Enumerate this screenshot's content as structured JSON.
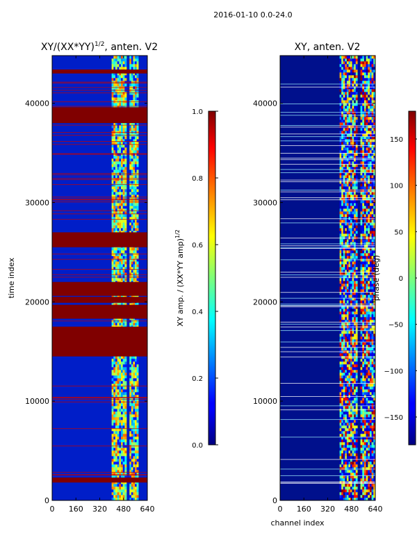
{
  "suptitle": "2016-01-10 0.0-24.0",
  "chart_data": [
    {
      "type": "heatmap",
      "title_main": "XY/(XX*YY)",
      "title_sup": "1/2",
      "title_tail": ", anten. V2",
      "xlabel": "",
      "ylabel": "time index",
      "xlim": [
        0,
        640
      ],
      "ylim": [
        0,
        44800
      ],
      "xticks": [
        0,
        160,
        320,
        480,
        640
      ],
      "yticks": [
        0,
        10000,
        20000,
        30000,
        40000
      ],
      "active_channels": [
        [
          400,
          500
        ],
        [
          520,
          580
        ]
      ],
      "saturated_bands": [
        [
          1800,
          2300
        ],
        [
          14500,
          17500
        ],
        [
          18300,
          19700
        ],
        [
          19900,
          20500
        ],
        [
          20600,
          22000
        ],
        [
          25500,
          27000
        ],
        [
          38000,
          39600
        ],
        [
          43000,
          43400
        ]
      ],
      "colorbar": {
        "label_main": "XY amp. / (XX*YY amp)",
        "label_sup": "1/2",
        "range": [
          0,
          1
        ],
        "ticks": [
          "0.0",
          "0.2",
          "0.4",
          "0.6",
          "0.8",
          "1.0"
        ],
        "tick_values": [
          0,
          0.2,
          0.4,
          0.6,
          0.8,
          1.0
        ]
      }
    },
    {
      "type": "heatmap",
      "title": "XY, anten. V2",
      "xlabel": "channel index",
      "ylabel": "",
      "xlim": [
        0,
        640
      ],
      "ylim": [
        0,
        44800
      ],
      "xticks": [
        0,
        160,
        320,
        480,
        640
      ],
      "yticks": [
        0,
        10000,
        20000,
        30000,
        40000
      ],
      "active_channels": [
        [
          400,
          520
        ],
        [
          540,
          640
        ]
      ],
      "colorbar": {
        "label": "phase (deg)",
        "range": [
          -180,
          180
        ],
        "ticks": [
          "150",
          "100",
          "50",
          "0",
          "−50",
          "−100",
          "−150"
        ],
        "tick_values": [
          150,
          100,
          50,
          0,
          -50,
          -100,
          -150
        ]
      }
    }
  ]
}
